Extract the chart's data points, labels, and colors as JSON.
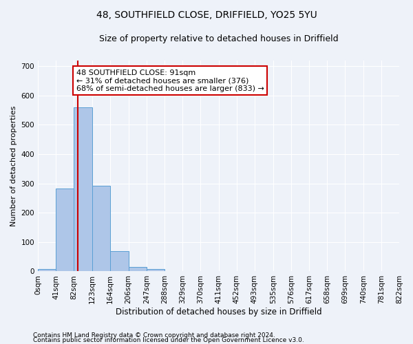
{
  "title1": "48, SOUTHFIELD CLOSE, DRIFFIELD, YO25 5YU",
  "title2": "Size of property relative to detached houses in Driffield",
  "xlabel": "Distribution of detached houses by size in Driffield",
  "ylabel": "Number of detached properties",
  "footnote1": "Contains HM Land Registry data © Crown copyright and database right 2024.",
  "footnote2": "Contains public sector information licensed under the Open Government Licence v3.0.",
  "bin_edges": [
    0,
    41,
    82,
    123,
    164,
    206,
    247,
    288,
    329,
    370,
    411,
    452,
    493,
    535,
    576,
    617,
    658,
    699,
    740,
    781,
    822
  ],
  "bar_heights": [
    7,
    283,
    560,
    293,
    68,
    14,
    9,
    0,
    0,
    0,
    0,
    0,
    0,
    0,
    0,
    0,
    0,
    0,
    0,
    0
  ],
  "bar_color": "#aec6e8",
  "bar_edge_color": "#5a9fd4",
  "property_size": 91,
  "red_line_color": "#cc0000",
  "annotation_line1": "48 SOUTHFIELD CLOSE: 91sqm",
  "annotation_line2": "← 31% of detached houses are smaller (376)",
  "annotation_line3": "68% of semi-detached houses are larger (833) →",
  "annotation_box_color": "#ffffff",
  "annotation_box_edge": "#cc0000",
  "ylim": [
    0,
    720
  ],
  "yticks": [
    0,
    100,
    200,
    300,
    400,
    500,
    600,
    700
  ],
  "background_color": "#eef2f9",
  "grid_color": "#ffffff",
  "title1_fontsize": 10,
  "title2_fontsize": 9,
  "xlabel_fontsize": 8.5,
  "ylabel_fontsize": 8,
  "tick_fontsize": 7.5,
  "annotation_fontsize": 8,
  "footnote_fontsize": 6.5
}
